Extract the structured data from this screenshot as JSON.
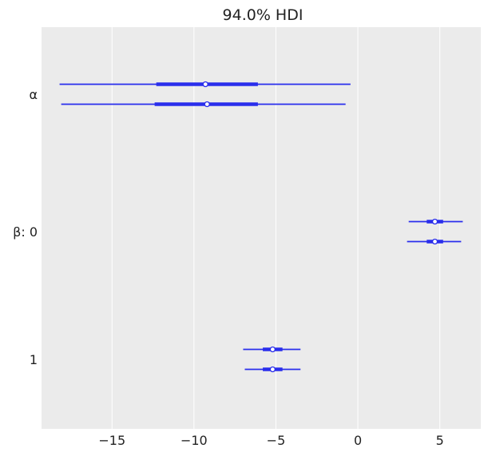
{
  "chart_data": {
    "type": "forest",
    "title": "94.0% HDI",
    "xlabel": "",
    "ylabel": "",
    "xlim": [
      -19.3,
      7.5
    ],
    "x_ticks": [
      -15,
      -10,
      -5,
      0,
      5
    ],
    "x_tick_labels": [
      "−15",
      "−10",
      "−5",
      "0",
      "5"
    ],
    "grid": "vertical",
    "background_color": "#ebebeb",
    "series_color": "#2a2eec",
    "rows": [
      {
        "label": "α",
        "chains": [
          {
            "hdi_94": [
              -18.2,
              -0.45
            ],
            "iqr": [
              -12.3,
              -6.1
            ],
            "median": -9.3
          },
          {
            "hdi_94": [
              -18.1,
              -0.75
            ],
            "iqr": [
              -12.4,
              -6.1
            ],
            "median": -9.2
          }
        ]
      },
      {
        "label": "β: 0",
        "chains": [
          {
            "hdi_94": [
              3.1,
              6.4
            ],
            "iqr": [
              4.2,
              5.2
            ],
            "median": 4.7
          },
          {
            "hdi_94": [
              3.0,
              6.3
            ],
            "iqr": [
              4.2,
              5.2
            ],
            "median": 4.7
          }
        ]
      },
      {
        "label": "1",
        "chains": [
          {
            "hdi_94": [
              -7.0,
              -3.5
            ],
            "iqr": [
              -5.8,
              -4.6
            ],
            "median": -5.2
          },
          {
            "hdi_94": [
              -6.9,
              -3.5
            ],
            "iqr": [
              -5.8,
              -4.6
            ],
            "median": -5.2
          }
        ]
      }
    ]
  }
}
